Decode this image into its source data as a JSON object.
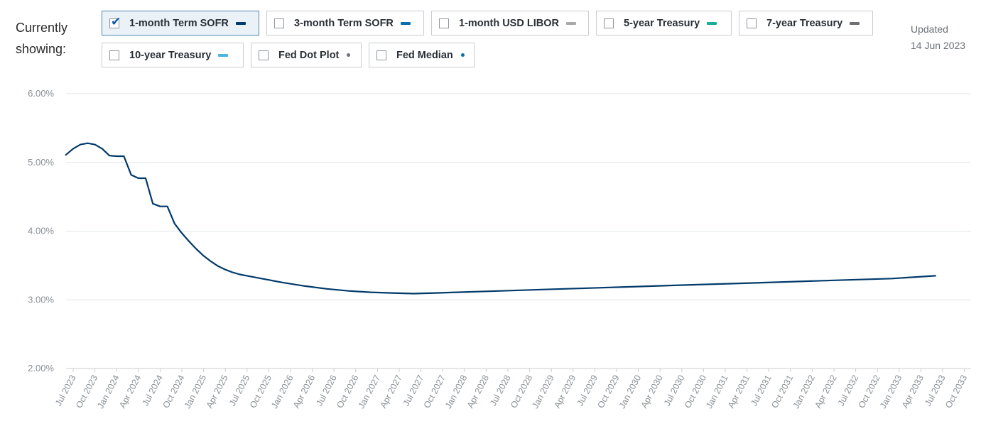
{
  "header": {
    "showing_label_line1": "Currently",
    "showing_label_line2": "showing:",
    "updated_label": "Updated",
    "updated_date": "14 Jun 2023"
  },
  "filters": [
    {
      "label": "1-month Term SOFR",
      "checked": true,
      "color": "#003a6b",
      "marker": "dash"
    },
    {
      "label": "3-month Term SOFR",
      "checked": false,
      "color": "#0a6fb0",
      "marker": "dash"
    },
    {
      "label": "1-month USD LIBOR",
      "checked": false,
      "color": "#a9a9a9",
      "marker": "dash"
    },
    {
      "label": "5-year Treasury",
      "checked": false,
      "color": "#1bae98",
      "marker": "dash"
    },
    {
      "label": "7-year Treasury",
      "checked": false,
      "color": "#6e7075",
      "marker": "dash"
    },
    {
      "label": "10-year Treasury",
      "checked": false,
      "color": "#4ab3e0",
      "marker": "dash"
    },
    {
      "label": "Fed Dot Plot",
      "checked": false,
      "color": "#6e7075",
      "marker": "dot"
    },
    {
      "label": "Fed Median",
      "checked": false,
      "color": "#0a6fb0",
      "marker": "dot"
    }
  ],
  "chart_data": {
    "type": "line",
    "title": "",
    "xlabel": "",
    "ylabel": "",
    "ylim": [
      2.0,
      6.0
    ],
    "y_ticks": [
      2.0,
      3.0,
      4.0,
      5.0,
      6.0
    ],
    "y_tick_labels": [
      "2.00%",
      "3.00%",
      "4.00%",
      "5.00%",
      "6.00%"
    ],
    "x_tick_labels": [
      "Jul 2023",
      "Oct 2023",
      "Jan 2024",
      "Apr 2024",
      "Jul 2024",
      "Oct 2024",
      "Jan 2025",
      "Apr 2025",
      "Jul 2025",
      "Oct 2025",
      "Jan 2026",
      "Apr 2026",
      "Jul 2026",
      "Oct 2026",
      "Jan 2027",
      "Apr 2027",
      "Jul 2027",
      "Oct 2027",
      "Jan 2028",
      "Apr 2028",
      "Jul 2028",
      "Oct 2028",
      "Jan 2029",
      "Apr 2029",
      "Jul 2029",
      "Oct 2029",
      "Jan 2030",
      "Apr 2030",
      "Jul 2030",
      "Oct 2030",
      "Jan 2031",
      "Apr 2031",
      "Jul 2031",
      "Oct 2031",
      "Jan 2032",
      "Apr 2032",
      "Jul 2032",
      "Oct 2032",
      "Jan 2033",
      "Apr 2033",
      "Jul 2033",
      "Oct 2033"
    ],
    "grid": true,
    "legend": "none",
    "series": [
      {
        "color": "#003a6b",
        "x": [
          "2023-06",
          "2023-07",
          "2023-08",
          "2023-09",
          "2023-10",
          "2023-11",
          "2023-12",
          "2024-01",
          "2024-02",
          "2024-03",
          "2024-04",
          "2024-05",
          "2024-06",
          "2024-07",
          "2024-08",
          "2024-09",
          "2024-10",
          "2024-11",
          "2024-12",
          "2025-01",
          "2025-02",
          "2025-03",
          "2025-04",
          "2025-05",
          "2025-06",
          "2025-07",
          "2025-09",
          "2025-12",
          "2026-03",
          "2026-06",
          "2026-09",
          "2026-12",
          "2027-03",
          "2027-06",
          "2027-09",
          "2027-12",
          "2028-06",
          "2028-12",
          "2029-06",
          "2029-12",
          "2030-06",
          "2030-12",
          "2031-06",
          "2031-12",
          "2032-06",
          "2032-12",
          "2033-06"
        ],
        "values": [
          5.11,
          5.2,
          5.26,
          5.28,
          5.26,
          5.2,
          5.1,
          5.09,
          5.09,
          4.82,
          4.77,
          4.77,
          4.4,
          4.36,
          4.36,
          4.11,
          3.97,
          3.85,
          3.74,
          3.64,
          3.56,
          3.49,
          3.44,
          3.4,
          3.37,
          3.35,
          3.31,
          3.25,
          3.2,
          3.16,
          3.13,
          3.11,
          3.1,
          3.09,
          3.1,
          3.11,
          3.13,
          3.15,
          3.17,
          3.19,
          3.21,
          3.23,
          3.25,
          3.27,
          3.29,
          3.31,
          3.35
        ]
      }
    ]
  }
}
